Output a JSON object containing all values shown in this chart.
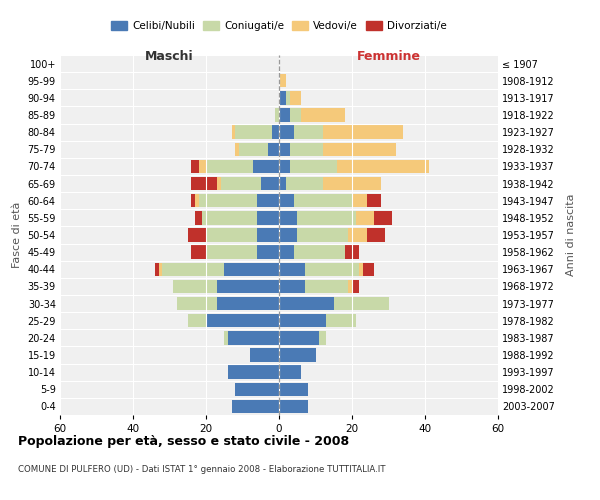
{
  "age_groups_bottom_to_top": [
    "0-4",
    "5-9",
    "10-14",
    "15-19",
    "20-24",
    "25-29",
    "30-34",
    "35-39",
    "40-44",
    "45-49",
    "50-54",
    "55-59",
    "60-64",
    "65-69",
    "70-74",
    "75-79",
    "80-84",
    "85-89",
    "90-94",
    "95-99",
    "100+"
  ],
  "birth_years_bottom_to_top": [
    "2003-2007",
    "1998-2002",
    "1993-1997",
    "1988-1992",
    "1983-1987",
    "1978-1982",
    "1973-1977",
    "1968-1972",
    "1963-1967",
    "1958-1962",
    "1953-1957",
    "1948-1952",
    "1943-1947",
    "1938-1942",
    "1933-1937",
    "1928-1932",
    "1923-1927",
    "1918-1922",
    "1913-1917",
    "1908-1912",
    "≤ 1907"
  ],
  "colors": {
    "celibe": "#4a7ab5",
    "coniugato": "#c8d9a8",
    "vedovo": "#f5c97a",
    "divorziato": "#c0312b"
  },
  "maschi": {
    "celibe": [
      13,
      12,
      14,
      8,
      14,
      20,
      17,
      17,
      15,
      6,
      6,
      6,
      6,
      5,
      7,
      3,
      2,
      0,
      0,
      0,
      0
    ],
    "coniugato": [
      0,
      0,
      0,
      0,
      1,
      5,
      11,
      12,
      17,
      14,
      14,
      15,
      16,
      11,
      13,
      8,
      10,
      1,
      0,
      0,
      0
    ],
    "vedovo": [
      0,
      0,
      0,
      0,
      0,
      0,
      0,
      0,
      1,
      0,
      0,
      0,
      1,
      1,
      2,
      1,
      1,
      0,
      0,
      0,
      0
    ],
    "divorziato": [
      0,
      0,
      0,
      0,
      0,
      0,
      0,
      0,
      1,
      4,
      5,
      2,
      1,
      7,
      2,
      0,
      0,
      0,
      0,
      0,
      0
    ]
  },
  "femmine": {
    "nubile": [
      8,
      8,
      6,
      10,
      11,
      13,
      15,
      7,
      7,
      4,
      5,
      5,
      4,
      2,
      3,
      3,
      4,
      3,
      2,
      0,
      0
    ],
    "coniugata": [
      0,
      0,
      0,
      0,
      2,
      8,
      15,
      12,
      15,
      14,
      14,
      16,
      16,
      10,
      13,
      9,
      8,
      3,
      1,
      0,
      0
    ],
    "vedova": [
      0,
      0,
      0,
      0,
      0,
      0,
      0,
      1,
      1,
      0,
      5,
      5,
      4,
      16,
      25,
      20,
      22,
      12,
      3,
      2,
      0
    ],
    "divorziata": [
      0,
      0,
      0,
      0,
      0,
      0,
      0,
      2,
      3,
      4,
      5,
      5,
      4,
      0,
      0,
      0,
      0,
      0,
      0,
      0,
      0
    ]
  },
  "xlim": 60,
  "title": "Popolazione per età, sesso e stato civile - 2008",
  "subtitle": "COMUNE DI PULFERO (UD) - Dati ISTAT 1° gennaio 2008 - Elaborazione TUTTITALIA.IT",
  "ylabel_left": "Fasce di età",
  "ylabel_right": "Anni di nascita",
  "xlabel_left": "Maschi",
  "xlabel_right": "Femmine",
  "legend_labels": [
    "Celibi/Nubili",
    "Coniugati/e",
    "Vedovi/e",
    "Divorziati/e"
  ],
  "bg_color": "#f0f0f0",
  "grid_color": "#ffffff",
  "maschi_label_color": "#333333",
  "femmine_label_color": "#cc3333"
}
